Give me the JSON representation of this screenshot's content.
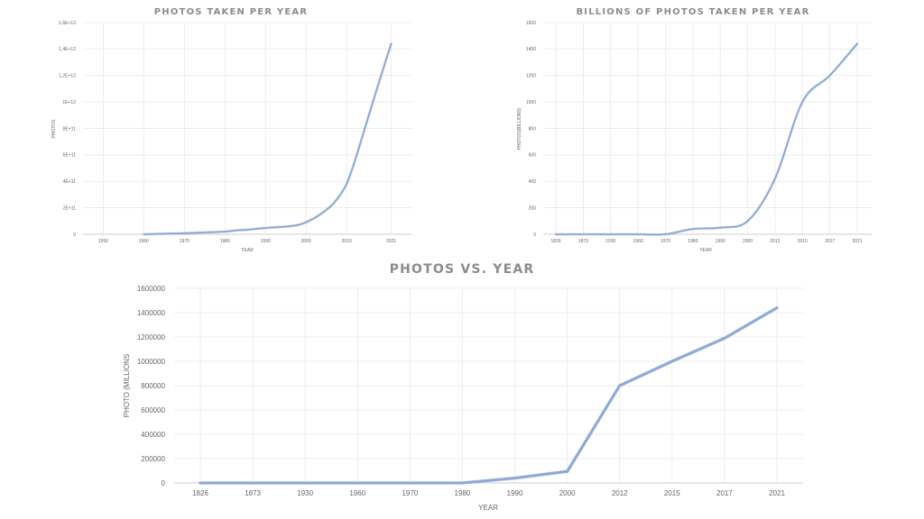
{
  "chart_data": [
    {
      "id": "c1",
      "type": "line",
      "title": "PHOTOS TAKEN PER YEAR",
      "xlabel": "YEAR",
      "ylabel": "PHOTOS",
      "x_ticks": [
        "1950",
        "1960",
        "1970",
        "1980",
        "1990",
        "2000",
        "2010",
        "2021"
      ],
      "xlim": [
        1945,
        2026
      ],
      "y_ticks": [
        "0",
        "2E+11",
        "4E+11",
        "6E+11",
        "8E+11",
        "1E+12",
        "1,2E+12",
        "1,4E+12",
        "1,6E+12"
      ],
      "ylim": [
        0,
        1600000000000
      ],
      "grid": true,
      "series": [
        {
          "color": "#8fa9d6",
          "x": [
            1960,
            1965,
            1970,
            1975,
            1980,
            1983,
            1985,
            1990,
            1995,
            1998,
            2000,
            2003,
            2006,
            2008,
            2010,
            2012,
            2015,
            2018,
            2021
          ],
          "y": [
            0,
            4000000000,
            8000000000,
            14000000000,
            20000000000,
            30000000000,
            33000000000,
            48000000000,
            58000000000,
            70000000000,
            90000000000,
            140000000000,
            210000000000,
            280000000000,
            380000000000,
            550000000000,
            850000000000,
            1150000000000,
            1440000000000
          ]
        }
      ]
    },
    {
      "id": "c2",
      "type": "line",
      "title": "BILLIONS OF PHOTOS TAKEN PER YEAR",
      "xlabel": "YEAR",
      "ylabel": "PHOTOS(BILLIONS)",
      "categories": [
        "1826",
        "1873",
        "1930",
        "1960",
        "1970",
        "1980",
        "1990",
        "2000",
        "2012",
        "2015",
        "2017",
        "2021"
      ],
      "y_ticks": [
        "0",
        "200",
        "400",
        "600",
        "800",
        "1000",
        "1200",
        "1400",
        "1600"
      ],
      "ylim": [
        0,
        1600
      ],
      "grid": true,
      "series": [
        {
          "color": "#8fa9d6",
          "values": [
            0,
            0,
            0,
            0,
            0,
            40,
            50,
            100,
            420,
            1000,
            1200,
            1440
          ]
        }
      ]
    },
    {
      "id": "c3",
      "type": "line",
      "title": "PHOTOS VS. YEAR",
      "xlabel": "YEAR",
      "ylabel": "PHOTO (MILLIONS",
      "categories": [
        "1826",
        "1873",
        "1930",
        "1960",
        "1970",
        "1980",
        "1990",
        "2000",
        "2012",
        "2015",
        "2017",
        "2021"
      ],
      "y_ticks": [
        "0",
        "200000",
        "400000",
        "600000",
        "800000",
        "1000000",
        "1200000",
        "1400000",
        "1600000"
      ],
      "ylim": [
        0,
        1600000
      ],
      "grid": true,
      "series": [
        {
          "color": "#8fa9d6",
          "values": [
            0,
            0,
            0,
            0,
            0,
            0,
            40000,
            95000,
            800000,
            1000000,
            1190000,
            1440000
          ]
        }
      ]
    }
  ]
}
